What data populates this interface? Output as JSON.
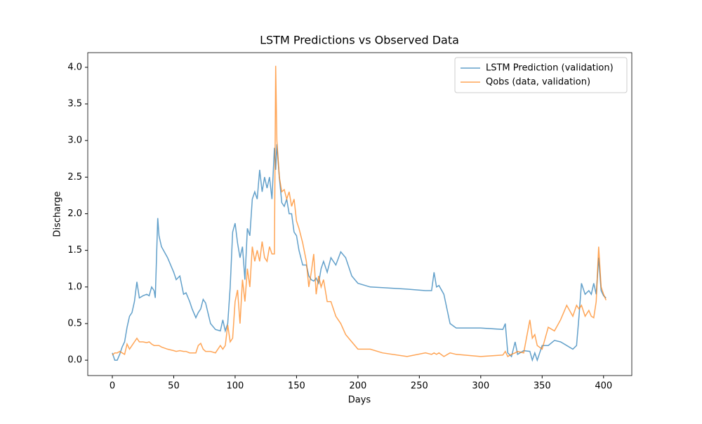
{
  "chart_data": {
    "type": "line",
    "title": "LSTM Predictions vs Observed Data",
    "x_label": "Days",
    "y_label": "Discharge",
    "x": [
      0,
      2,
      4,
      6,
      8,
      10,
      12,
      14,
      16,
      18,
      20,
      22,
      25,
      28,
      30,
      32,
      34,
      35,
      37,
      38,
      40,
      45,
      50,
      52,
      55,
      58,
      60,
      63,
      65,
      68,
      70,
      72,
      74,
      76,
      80,
      84,
      88,
      90,
      92,
      94,
      96,
      98,
      100,
      102,
      104,
      106,
      108,
      110,
      112,
      114,
      116,
      118,
      120,
      122,
      124,
      126,
      128,
      130,
      132,
      133,
      134,
      136,
      138,
      140,
      142,
      144,
      146,
      148,
      150,
      152,
      155,
      158,
      160,
      162,
      164,
      166,
      168,
      170,
      172,
      175,
      178,
      182,
      186,
      190,
      195,
      200,
      210,
      220,
      240,
      255,
      260,
      262,
      264,
      266,
      270,
      275,
      280,
      300,
      318,
      320,
      322,
      325,
      328,
      330,
      335,
      340,
      342,
      344,
      346,
      350,
      355,
      360,
      365,
      370,
      375,
      378,
      380,
      382,
      385,
      388,
      390,
      392,
      394,
      396,
      398,
      400,
      402
    ],
    "series": [
      {
        "name": "LSTM Prediction (validation)",
        "color": "#1f77b4",
        "values": [
          0.1,
          0.0,
          0.0,
          0.08,
          0.18,
          0.25,
          0.45,
          0.6,
          0.65,
          0.8,
          1.07,
          0.85,
          0.88,
          0.9,
          0.88,
          1.0,
          0.95,
          0.85,
          1.94,
          1.7,
          1.55,
          1.4,
          1.2,
          1.1,
          1.15,
          0.9,
          0.92,
          0.8,
          0.7,
          0.58,
          0.65,
          0.7,
          0.83,
          0.78,
          0.5,
          0.42,
          0.4,
          0.55,
          0.4,
          0.5,
          1.0,
          1.75,
          1.87,
          1.6,
          1.4,
          1.55,
          1.1,
          1.8,
          1.7,
          2.2,
          2.3,
          2.2,
          2.6,
          2.3,
          2.5,
          2.35,
          2.5,
          2.2,
          2.9,
          2.6,
          2.95,
          2.5,
          2.15,
          2.1,
          2.2,
          2.0,
          2.0,
          1.75,
          1.7,
          1.5,
          1.3,
          1.3,
          1.15,
          1.1,
          1.08,
          1.12,
          1.05,
          1.25,
          1.35,
          1.2,
          1.4,
          1.3,
          1.48,
          1.4,
          1.15,
          1.05,
          1.0,
          0.99,
          0.97,
          0.95,
          0.95,
          1.2,
          1.0,
          1.02,
          0.9,
          0.5,
          0.44,
          0.44,
          0.42,
          0.5,
          0.1,
          0.05,
          0.25,
          0.08,
          0.13,
          0.12,
          0.0,
          0.1,
          0.0,
          0.2,
          0.2,
          0.27,
          0.25,
          0.2,
          0.15,
          0.2,
          0.6,
          1.05,
          0.9,
          0.95,
          0.9,
          1.05,
          0.9,
          1.4,
          0.95,
          0.88,
          0.85
        ]
      },
      {
        "name": "Qobs (data, validation)",
        "color": "#ff7f0e",
        "values": [
          0.07,
          0.1,
          0.1,
          0.12,
          0.1,
          0.08,
          0.22,
          0.15,
          0.2,
          0.25,
          0.3,
          0.25,
          0.25,
          0.24,
          0.25,
          0.22,
          0.2,
          0.2,
          0.2,
          0.2,
          0.18,
          0.15,
          0.13,
          0.12,
          0.13,
          0.12,
          0.12,
          0.1,
          0.1,
          0.1,
          0.2,
          0.23,
          0.15,
          0.12,
          0.12,
          0.1,
          0.2,
          0.15,
          0.2,
          0.48,
          0.25,
          0.3,
          0.8,
          0.96,
          0.5,
          1.1,
          0.8,
          1.25,
          1.0,
          1.55,
          1.35,
          1.5,
          1.35,
          1.62,
          1.4,
          1.35,
          1.55,
          1.45,
          1.45,
          4.02,
          3.0,
          2.5,
          2.3,
          2.33,
          2.2,
          2.3,
          2.1,
          2.2,
          1.9,
          1.8,
          1.6,
          1.35,
          1.0,
          1.2,
          1.45,
          0.9,
          1.15,
          1.0,
          1.1,
          0.8,
          0.8,
          0.6,
          0.5,
          0.35,
          0.25,
          0.15,
          0.15,
          0.1,
          0.05,
          0.1,
          0.08,
          0.1,
          0.08,
          0.1,
          0.05,
          0.1,
          0.08,
          0.05,
          0.07,
          0.12,
          0.05,
          0.08,
          0.1,
          0.12,
          0.1,
          0.55,
          0.3,
          0.35,
          0.2,
          0.15,
          0.45,
          0.4,
          0.55,
          0.75,
          0.6,
          0.75,
          0.7,
          0.75,
          0.6,
          0.68,
          0.6,
          0.58,
          0.8,
          1.55,
          1.0,
          0.9,
          0.82
        ]
      }
    ],
    "xlim": [
      -20,
      423
    ],
    "ylim": [
      -0.21,
      4.2
    ],
    "xticks": [
      0,
      50,
      100,
      150,
      200,
      250,
      300,
      350,
      400
    ],
    "yticks": [
      {
        "value": 0,
        "label": "0.0"
      },
      0.5,
      {
        "value": 1,
        "label": "1.0"
      },
      1.5,
      {
        "value": 2,
        "label": "2.0"
      },
      2.5,
      {
        "value": 3,
        "label": "3.0"
      },
      3.5,
      {
        "value": 4,
        "label": "4.0"
      }
    ],
    "legend": "upper right"
  }
}
